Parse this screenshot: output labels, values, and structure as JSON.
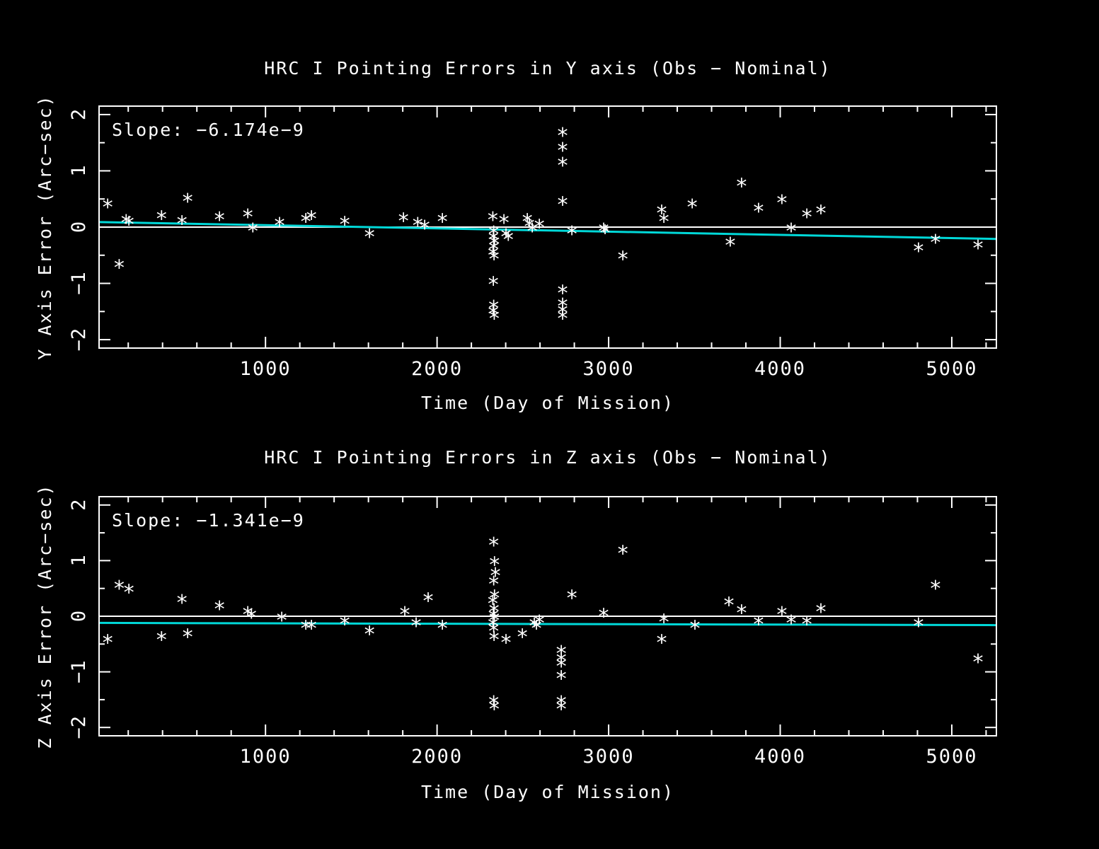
{
  "colors": {
    "background": "#000000",
    "foreground": "#ffffff",
    "trend": "#00d8d8"
  },
  "chart_data": [
    {
      "type": "scatter",
      "title": "HRC I Pointing Errors in Y axis (Obs − Nominal)",
      "xlabel": "Time (Day of Mission)",
      "ylabel": "Y Axis Error (Arc−sec)",
      "annotation": "Slope: −6.174e−9",
      "marker": "*",
      "xlim": [
        30,
        5260
      ],
      "ylim": [
        -2.15,
        2.15
      ],
      "x_minor_step": 200,
      "y_minor_step": 0.5,
      "xticks": [
        {
          "v": 1000,
          "label": "1000"
        },
        {
          "v": 2000,
          "label": "2000"
        },
        {
          "v": 3000,
          "label": "3000"
        },
        {
          "v": 4000,
          "label": "4000"
        },
        {
          "v": 5000,
          "label": "5000"
        }
      ],
      "yticks": [
        {
          "v": -2,
          "label": "−2"
        },
        {
          "v": -1,
          "label": "−1"
        },
        {
          "v": 0,
          "label": "0"
        },
        {
          "v": 1,
          "label": "1"
        },
        {
          "v": 2,
          "label": "2"
        }
      ],
      "zero_line": 0,
      "trend": {
        "x": [
          30,
          5260
        ],
        "y": [
          0.09,
          -0.21
        ]
      },
      "points": [
        [
          80,
          0.38
        ],
        [
          147,
          -0.7
        ],
        [
          188,
          0.1
        ],
        [
          204,
          0.07
        ],
        [
          394,
          0.17
        ],
        [
          513,
          0.08
        ],
        [
          546,
          0.48
        ],
        [
          732,
          0.15
        ],
        [
          897,
          0.2
        ],
        [
          926,
          -0.05
        ],
        [
          1082,
          0.05
        ],
        [
          1235,
          0.12
        ],
        [
          1268,
          0.17
        ],
        [
          1462,
          0.07
        ],
        [
          1606,
          -0.15
        ],
        [
          1804,
          0.13
        ],
        [
          1887,
          0.05
        ],
        [
          1928,
          0.0
        ],
        [
          2031,
          0.12
        ],
        [
          2325,
          0.15
        ],
        [
          2330,
          -0.1
        ],
        [
          2328,
          -0.2
        ],
        [
          2335,
          -0.28
        ],
        [
          2330,
          -0.38
        ],
        [
          2326,
          -0.48
        ],
        [
          2332,
          -0.55
        ],
        [
          2328,
          -1.0
        ],
        [
          2330,
          -1.42
        ],
        [
          2327,
          -1.52
        ],
        [
          2333,
          -1.6
        ],
        [
          2390,
          0.1
        ],
        [
          2402,
          -0.15
        ],
        [
          2415,
          -0.2
        ],
        [
          2526,
          0.12
        ],
        [
          2538,
          0.03
        ],
        [
          2555,
          -0.05
        ],
        [
          2596,
          0.02
        ],
        [
          2732,
          1.65
        ],
        [
          2732,
          1.38
        ],
        [
          2732,
          1.12
        ],
        [
          2732,
          0.42
        ],
        [
          2732,
          -1.15
        ],
        [
          2732,
          -1.38
        ],
        [
          2732,
          -1.5
        ],
        [
          2732,
          -1.6
        ],
        [
          2786,
          -0.1
        ],
        [
          2971,
          -0.05
        ],
        [
          2979,
          -0.08
        ],
        [
          3083,
          -0.55
        ],
        [
          3309,
          0.27
        ],
        [
          3322,
          0.12
        ],
        [
          3487,
          0.38
        ],
        [
          3709,
          -0.3
        ],
        [
          3775,
          0.75
        ],
        [
          3874,
          0.3
        ],
        [
          4010,
          0.45
        ],
        [
          4064,
          -0.05
        ],
        [
          4155,
          0.2
        ],
        [
          4237,
          0.27
        ],
        [
          4806,
          -0.4
        ],
        [
          4905,
          -0.25
        ],
        [
          5153,
          -0.35
        ]
      ]
    },
    {
      "type": "scatter",
      "title": "HRC I Pointing Errors in  Z axis (Obs − Nominal)",
      "xlabel": "Time (Day of Mission)",
      "ylabel": "Z Axis Error (Arc−sec)",
      "annotation": "Slope: −1.341e−9",
      "marker": "*",
      "xlim": [
        30,
        5260
      ],
      "ylim": [
        -2.15,
        2.15
      ],
      "x_minor_step": 200,
      "y_minor_step": 0.5,
      "xticks": [
        {
          "v": 1000,
          "label": "1000"
        },
        {
          "v": 2000,
          "label": "2000"
        },
        {
          "v": 3000,
          "label": "3000"
        },
        {
          "v": 4000,
          "label": "4000"
        },
        {
          "v": 5000,
          "label": "5000"
        }
      ],
      "yticks": [
        {
          "v": -2,
          "label": "−2"
        },
        {
          "v": -1,
          "label": "−1"
        },
        {
          "v": 0,
          "label": "0"
        },
        {
          "v": 1,
          "label": "1"
        },
        {
          "v": 2,
          "label": "2"
        }
      ],
      "zero_line": 0,
      "trend": {
        "x": [
          30,
          5260
        ],
        "y": [
          -0.12,
          -0.16
        ]
      },
      "points": [
        [
          80,
          -0.45
        ],
        [
          147,
          0.52
        ],
        [
          204,
          0.45
        ],
        [
          394,
          -0.4
        ],
        [
          513,
          0.27
        ],
        [
          546,
          -0.35
        ],
        [
          732,
          0.15
        ],
        [
          897,
          0.05
        ],
        [
          918,
          0.0
        ],
        [
          1095,
          -0.05
        ],
        [
          1235,
          -0.2
        ],
        [
          1268,
          -0.2
        ],
        [
          1462,
          -0.12
        ],
        [
          1606,
          -0.3
        ],
        [
          1812,
          0.05
        ],
        [
          1878,
          -0.15
        ],
        [
          1948,
          0.3
        ],
        [
          2031,
          -0.2
        ],
        [
          2330,
          1.3
        ],
        [
          2335,
          0.95
        ],
        [
          2340,
          0.75
        ],
        [
          2330,
          0.6
        ],
        [
          2335,
          0.35
        ],
        [
          2325,
          0.25
        ],
        [
          2332,
          0.1
        ],
        [
          2328,
          0.0
        ],
        [
          2334,
          -0.05
        ],
        [
          2326,
          -0.15
        ],
        [
          2330,
          -0.25
        ],
        [
          2332,
          -0.4
        ],
        [
          2330,
          -1.55
        ],
        [
          2333,
          -1.65
        ],
        [
          2402,
          -0.45
        ],
        [
          2497,
          -0.35
        ],
        [
          2567,
          -0.15
        ],
        [
          2579,
          -0.2
        ],
        [
          2596,
          -0.1
        ],
        [
          2724,
          -0.65
        ],
        [
          2724,
          -0.78
        ],
        [
          2724,
          -0.88
        ],
        [
          2724,
          -1.1
        ],
        [
          2724,
          -1.55
        ],
        [
          2724,
          -1.65
        ],
        [
          2786,
          0.35
        ],
        [
          2971,
          0.02
        ],
        [
          3083,
          1.15
        ],
        [
          3309,
          -0.45
        ],
        [
          3322,
          -0.08
        ],
        [
          3503,
          -0.2
        ],
        [
          3701,
          0.22
        ],
        [
          3775,
          0.08
        ],
        [
          3874,
          -0.12
        ],
        [
          4010,
          0.05
        ],
        [
          4064,
          -0.1
        ],
        [
          4155,
          -0.12
        ],
        [
          4237,
          0.1
        ],
        [
          4806,
          -0.15
        ],
        [
          4905,
          0.52
        ],
        [
          5153,
          -0.8
        ]
      ]
    }
  ]
}
